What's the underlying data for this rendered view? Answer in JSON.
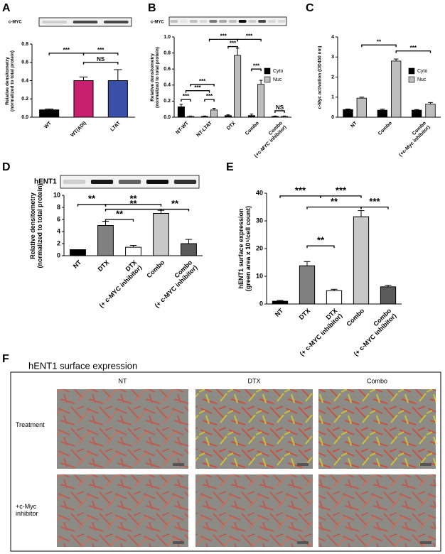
{
  "chart_data": [
    {
      "type": "bar",
      "panel": "A",
      "blot_label": "c-MYC",
      "ylabel": "Relative densitometry\n(normalized to total protein)",
      "categories": [
        "WT",
        "WT(ADI)",
        "LTAT"
      ],
      "values": [
        0.08,
        0.4,
        0.4
      ],
      "errors": [
        0.01,
        0.04,
        0.12
      ],
      "colors": [
        "#000000",
        "#c8206e",
        "#3a4fa8"
      ],
      "ylim": [
        0,
        0.8
      ],
      "yticks": [
        {
          "value": 0,
          "label": "0.0"
        },
        {
          "value": 0.2,
          "label": "0.2"
        },
        {
          "value": 0.4,
          "label": "0.4"
        },
        {
          "value": 0.6,
          "label": "0.6"
        },
        {
          "value": 0.8,
          "label": "0.8"
        }
      ],
      "annotations": [
        "***",
        "***",
        "NS"
      ]
    },
    {
      "type": "grouped_bar",
      "panel": "B",
      "blot_label": "c-MYC",
      "ylabel": "Relative densitometry\n(normalized to total protein)",
      "categories": [
        "NT-WT",
        "NT-LTAT",
        "DTX",
        "Combo",
        "Combo\n(+c-MYC inhibitor)"
      ],
      "series": [
        {
          "name": "Cyto",
          "color": "#000000",
          "values": [
            0.13,
            0.01,
            0.02,
            0.02,
            0.01
          ],
          "errors": [
            0.03,
            0.005,
            0.01,
            0.02,
            0.005
          ]
        },
        {
          "name": "Nuc",
          "color": "#bdbdbd",
          "values": [
            0.01,
            0.09,
            0.77,
            0.41,
            0.01
          ],
          "errors": [
            0.005,
            0.02,
            0.09,
            0.05,
            0.005
          ]
        }
      ],
      "ylim": [
        0,
        1
      ],
      "legend": "right",
      "yticks": [
        {
          "value": 0,
          "label": "0.0"
        },
        {
          "value": 0.2,
          "label": "0.2"
        },
        {
          "value": 0.4,
          "label": "0.4"
        },
        {
          "value": 0.6,
          "label": "0.6"
        },
        {
          "value": 0.8,
          "label": "0.8"
        },
        {
          "value": 1,
          "label": "1.0"
        }
      ],
      "annotations": [
        "***",
        "***",
        "***",
        "***",
        "***",
        "***",
        "***",
        "***",
        "NS"
      ]
    },
    {
      "type": "grouped_bar",
      "panel": "C",
      "ylabel": "c-Myc activation (OD450 nm)",
      "categories": [
        "NT",
        "Combo",
        "Combo\n(+c-Myc inhibitor)"
      ],
      "series": [
        {
          "name": "Cyto",
          "color": "#000000",
          "values": [
            0.38,
            0.35,
            0.35
          ],
          "errors": [
            0.03,
            0.05,
            0.03
          ]
        },
        {
          "name": "Nuc",
          "color": "#bdbdbd",
          "values": [
            0.95,
            2.8,
            0.65
          ],
          "errors": [
            0.05,
            0.1,
            0.08
          ]
        }
      ],
      "ylim": [
        0,
        4
      ],
      "yticks": [
        0,
        1,
        2,
        3,
        4
      ],
      "legend": "right",
      "annotations": [
        "**",
        "***"
      ]
    },
    {
      "type": "bar",
      "panel": "D",
      "blot_label": "hENT1",
      "ylabel": "Relative densitometry\n(normalized to total protein)",
      "categories": [
        "NT",
        "DTX",
        "DTX\n(+ c-MYC inhibitor)",
        "Combo",
        "Combo\n(+ c-MYC inhibitor)"
      ],
      "values": [
        1,
        5,
        1.4,
        7,
        2
      ],
      "errors": [
        0,
        0.7,
        0.3,
        0.5,
        0.7
      ],
      "colors": [
        "#000000",
        "#808080",
        "#ffffff",
        "#c8c8c8",
        "#5a5a5a"
      ],
      "ylim": [
        0,
        10
      ],
      "yticks": [
        0,
        2,
        4,
        6,
        8,
        10
      ],
      "annotations": [
        "**",
        "**",
        "**",
        "**",
        "**"
      ]
    },
    {
      "type": "bar",
      "panel": "E",
      "ylabel": "hENT1 surface expression\n(green area x 10⁵/cell count)",
      "categories": [
        "NT",
        "DTX",
        "DTX\n(+ c-MYC inhibitor)",
        "Combo",
        "Combo\n(+ c-MYC inhibitor)"
      ],
      "values": [
        1,
        13.8,
        4.8,
        31.5,
        6.2
      ],
      "errors": [
        0.3,
        1.5,
        0.5,
        2.2,
        0.6
      ],
      "colors": [
        "#000000",
        "#808080",
        "#ffffff",
        "#c8c8c8",
        "#5a5a5a"
      ],
      "ylim": [
        0,
        40
      ],
      "yticks": [
        0,
        10,
        20,
        30,
        40
      ],
      "annotations": [
        "***",
        "***",
        "**",
        "**",
        "***"
      ]
    }
  ],
  "panel_f": {
    "panel": "F",
    "title": "hENT1 surface expression",
    "columns": [
      "NT",
      "DTX",
      "Combo"
    ],
    "rows": [
      "Treatment",
      "+c-Myc\ninhibitor"
    ]
  }
}
